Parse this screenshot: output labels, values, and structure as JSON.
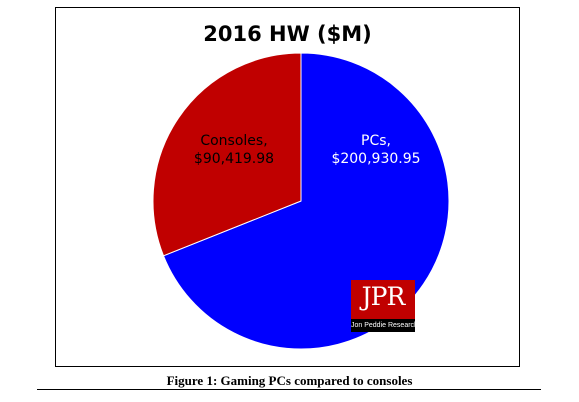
{
  "chart_data": {
    "type": "pie",
    "title": "2016 HW ($M)",
    "slices": [
      {
        "label": "PCs",
        "value": 200930.95,
        "display": "$200,930.95",
        "color": "#0000ff"
      },
      {
        "label": "Consoles",
        "value": 90419.98,
        "display": "$90,419.98",
        "color": "#c00000"
      }
    ],
    "legend": "none"
  },
  "logo": {
    "text": "JPR",
    "subtext": "Jon Peddie Research"
  },
  "caption": "Figure 1: Gaming PCs compared to consoles"
}
